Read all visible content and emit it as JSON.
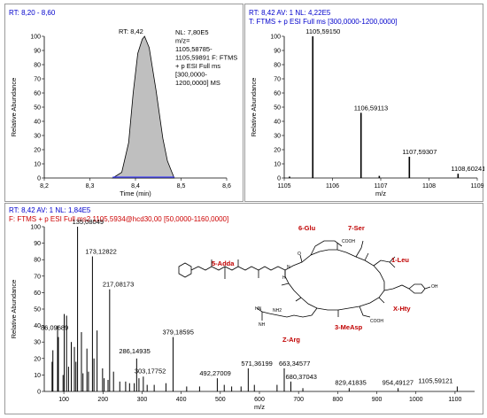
{
  "panels": {
    "chromatogram": {
      "header": "RT: 8,20 - 8,60",
      "peak_label": "RT: 8,42",
      "info_lines": [
        "NL: 7,80E5",
        "m/z=",
        "1105,58785-",
        "1105,59891  F: FTMS",
        "+ p ESI Full ms",
        "[300,0000-",
        "1200,0000]  MS"
      ]
    },
    "ms1": {
      "header_line1": "RT: 8,42   AV: 1   NL: 4,22E5",
      "header_line2": "T: FTMS + p ESI Full ms [300,0000-1200,0000]"
    },
    "ms2": {
      "header_line1": "RT: 8,42   AV: 1   NL: 1,84E5",
      "header_line2": "F: FTMS + p ESI Full ms2 1105,5934@hcd30,00 [50,0000-1160,0000]"
    },
    "structure": {
      "labels": [
        "6-Glu",
        "7-Ser",
        "5-Adda",
        "1-Leu",
        "X-Hty",
        "Z-Arg",
        "3-MeAsp"
      ],
      "atoms": [
        "COOH",
        "COOH",
        "HN",
        "NH",
        "NH2",
        "OH",
        "O",
        "H",
        "N"
      ]
    }
  },
  "chart_data": [
    {
      "type": "line",
      "xlabel": "Time (min)",
      "ylabel": "Relative Abundance",
      "xlim": [
        8.2,
        8.6
      ],
      "ylim": [
        0,
        100
      ],
      "x_ticks": [
        "8,2",
        "8,3",
        "8,4",
        "8,5",
        "8,6"
      ],
      "y_ticks": [
        "0",
        "10",
        "20",
        "30",
        "40",
        "50",
        "60",
        "70",
        "80",
        "90",
        "100"
      ],
      "series": [
        {
          "x": [
            8.35,
            8.37,
            8.385,
            8.395,
            8.405,
            8.415,
            8.42,
            8.43,
            8.445,
            8.46,
            8.47,
            8.48,
            8.485
          ],
          "y": [
            0,
            4,
            25,
            60,
            88,
            98,
            100,
            92,
            62,
            28,
            12,
            4,
            0
          ]
        }
      ],
      "grid": false
    },
    {
      "type": "bar",
      "xlabel": "m/z",
      "ylabel": "Relative Abundance",
      "xlim": [
        1105,
        1109
      ],
      "ylim": [
        0,
        100
      ],
      "x_ticks": [
        "1105",
        "1106",
        "1107",
        "1108",
        "1109"
      ],
      "y_ticks": [
        "0",
        "10",
        "20",
        "30",
        "40",
        "50",
        "60",
        "70",
        "80",
        "90",
        "100"
      ],
      "peaks": [
        {
          "x": 1105.5915,
          "y": 100,
          "label": "1105,59150"
        },
        {
          "x": 1106.59113,
          "y": 46,
          "label": "1106,59113"
        },
        {
          "x": 1107.59307,
          "y": 15,
          "label": "1107,59307"
        },
        {
          "x": 1108.60241,
          "y": 3,
          "label": "1108,60241"
        },
        {
          "x": 1106.97,
          "y": 1.5,
          "label": ""
        },
        {
          "x": 1105.11,
          "y": 1,
          "label": ""
        }
      ],
      "grid": false
    },
    {
      "type": "bar",
      "xlabel": "m/z",
      "ylabel": "Relative Abundance",
      "xlim": [
        50,
        1150
      ],
      "ylim": [
        0,
        100
      ],
      "x_ticks": [
        "100",
        "200",
        "300",
        "400",
        "500",
        "600",
        "700",
        "800",
        "900",
        "1000",
        "1100"
      ],
      "y_ticks": [
        "0",
        "10",
        "20",
        "30",
        "40",
        "50",
        "60",
        "70",
        "80",
        "90",
        "100"
      ],
      "peaks": [
        {
          "x": 135.08049,
          "y": 100,
          "label": "135,08049"
        },
        {
          "x": 173.12822,
          "y": 82,
          "label": "173,12822"
        },
        {
          "x": 217.08173,
          "y": 62,
          "label": "217,08173"
        },
        {
          "x": 86.09689,
          "y": 33,
          "label": "86,09689"
        },
        {
          "x": 379.18595,
          "y": 33,
          "label": "379,18595"
        },
        {
          "x": 286.14935,
          "y": 20,
          "label": "286,14935"
        },
        {
          "x": 303.17752,
          "y": 9,
          "label": "303,17752"
        },
        {
          "x": 492.27009,
          "y": 8,
          "label": "492,27009"
        },
        {
          "x": 571.36199,
          "y": 14,
          "label": "571,36199"
        },
        {
          "x": 663.34577,
          "y": 14,
          "label": "663,34577"
        },
        {
          "x": 680.37043,
          "y": 6,
          "label": "680,37043"
        },
        {
          "x": 829.41835,
          "y": 2,
          "label": "829,41835"
        },
        {
          "x": 954.49127,
          "y": 2,
          "label": "954,49127"
        },
        {
          "x": 1105.59121,
          "y": 3,
          "label": "1105,59121"
        },
        {
          "x": 70,
          "y": 18,
          "label": ""
        },
        {
          "x": 72,
          "y": 25,
          "label": ""
        },
        {
          "x": 84,
          "y": 40,
          "label": ""
        },
        {
          "x": 98,
          "y": 10,
          "label": ""
        },
        {
          "x": 101,
          "y": 47,
          "label": ""
        },
        {
          "x": 107,
          "y": 46,
          "label": ""
        },
        {
          "x": 112,
          "y": 15,
          "label": ""
        },
        {
          "x": 119,
          "y": 30,
          "label": ""
        },
        {
          "x": 127,
          "y": 27,
          "label": ""
        },
        {
          "x": 131,
          "y": 18,
          "label": ""
        },
        {
          "x": 145,
          "y": 36,
          "label": ""
        },
        {
          "x": 149,
          "y": 11,
          "label": ""
        },
        {
          "x": 159,
          "y": 26,
          "label": ""
        },
        {
          "x": 163,
          "y": 12,
          "label": ""
        },
        {
          "x": 177,
          "y": 20,
          "label": ""
        },
        {
          "x": 185,
          "y": 37,
          "label": ""
        },
        {
          "x": 199,
          "y": 14,
          "label": ""
        },
        {
          "x": 203,
          "y": 8,
          "label": ""
        },
        {
          "x": 213,
          "y": 7,
          "label": ""
        },
        {
          "x": 227,
          "y": 12,
          "label": ""
        },
        {
          "x": 243,
          "y": 6,
          "label": ""
        },
        {
          "x": 258,
          "y": 6,
          "label": ""
        },
        {
          "x": 268,
          "y": 5,
          "label": ""
        },
        {
          "x": 280,
          "y": 5,
          "label": ""
        },
        {
          "x": 292,
          "y": 8,
          "label": ""
        },
        {
          "x": 313,
          "y": 4,
          "label": ""
        },
        {
          "x": 331,
          "y": 4,
          "label": ""
        },
        {
          "x": 361,
          "y": 5,
          "label": ""
        },
        {
          "x": 414,
          "y": 3,
          "label": ""
        },
        {
          "x": 447,
          "y": 3,
          "label": ""
        },
        {
          "x": 510,
          "y": 4,
          "label": ""
        },
        {
          "x": 529,
          "y": 3,
          "label": ""
        },
        {
          "x": 553,
          "y": 3,
          "label": ""
        },
        {
          "x": 587,
          "y": 4,
          "label": ""
        },
        {
          "x": 645,
          "y": 4,
          "label": ""
        },
        {
          "x": 711,
          "y": 2,
          "label": ""
        }
      ],
      "grid": false
    }
  ]
}
